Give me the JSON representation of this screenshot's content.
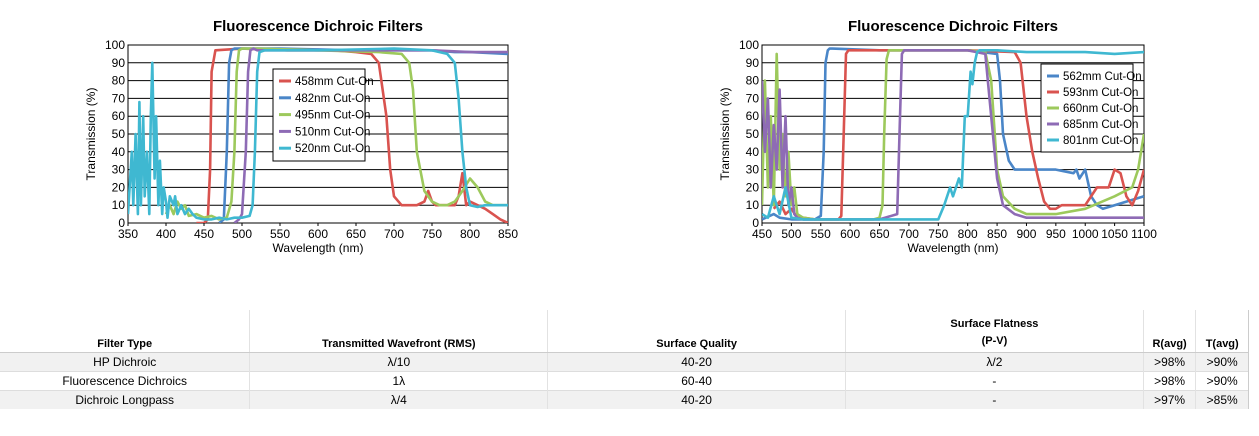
{
  "chart_data": [
    {
      "type": "line",
      "title": "Fluorescence Dichroic Filters",
      "xlabel": "Wavelength (nm)",
      "ylabel": "Transmission (%)",
      "xlim": [
        350,
        850
      ],
      "ylim": [
        0,
        100
      ],
      "xticks": [
        350,
        400,
        450,
        500,
        550,
        600,
        650,
        700,
        750,
        800,
        850
      ],
      "yticks": [
        0,
        10,
        20,
        30,
        40,
        50,
        60,
        70,
        80,
        90,
        100
      ],
      "grid": true,
      "legend_position": "center-right",
      "series": [
        {
          "name": "458mm Cut-On",
          "color": "#d9534f",
          "x": [
            440,
            450,
            455,
            458,
            460,
            465,
            500,
            560,
            620,
            650,
            670,
            680,
            690,
            695,
            700,
            710,
            720,
            730,
            740,
            745,
            750,
            755,
            760,
            770,
            780,
            785,
            790,
            795,
            800,
            810,
            820,
            830,
            840,
            850
          ],
          "y": [
            0,
            0,
            2,
            30,
            85,
            97,
            98,
            97,
            97,
            96,
            95,
            90,
            60,
            30,
            15,
            10,
            10,
            10,
            12,
            18,
            12,
            10,
            10,
            10,
            10,
            15,
            28,
            10,
            12,
            10,
            8,
            5,
            2,
            0
          ]
        },
        {
          "name": "482nm Cut-On",
          "color": "#4a86c8",
          "x": [
            470,
            476,
            480,
            483,
            486,
            490,
            550,
            650,
            700,
            750,
            780,
            800,
            850
          ],
          "y": [
            0,
            2,
            40,
            90,
            97,
            98,
            98,
            97,
            97,
            97,
            96,
            96,
            95
          ]
        },
        {
          "name": "495nm Cut-On",
          "color": "#9dc95c",
          "x": [
            400,
            405,
            410,
            415,
            420,
            425,
            430,
            440,
            450,
            460,
            470,
            480,
            486,
            490,
            493,
            496,
            500,
            520,
            600,
            680,
            710,
            720,
            725,
            730,
            740,
            750,
            760,
            770,
            780,
            790,
            800,
            810,
            820,
            830,
            840,
            850
          ],
          "y": [
            5,
            10,
            5,
            12,
            8,
            10,
            4,
            5,
            3,
            4,
            2,
            3,
            12,
            40,
            85,
            97,
            98,
            98,
            97,
            96,
            95,
            90,
            75,
            40,
            18,
            12,
            10,
            10,
            12,
            18,
            25,
            20,
            12,
            10,
            10,
            10
          ]
        },
        {
          "name": "510nm Cut-On",
          "color": "#8e6bb5",
          "x": [
            490,
            496,
            500,
            505,
            508,
            511,
            515,
            520,
            600,
            700,
            750,
            800,
            850
          ],
          "y": [
            0,
            2,
            5,
            40,
            85,
            97,
            98,
            97,
            97,
            97,
            97,
            96,
            96
          ]
        },
        {
          "name": "520nm Cut-On",
          "color": "#3fb8d1",
          "x": [
            350,
            355,
            357,
            360,
            363,
            365,
            367,
            370,
            372,
            375,
            378,
            380,
            382,
            385,
            387,
            390,
            392,
            395,
            397,
            400,
            402,
            405,
            410,
            412,
            415,
            420,
            425,
            430,
            435,
            440,
            450,
            460,
            470,
            480,
            490,
            500,
            510,
            514,
            517,
            520,
            523,
            530,
            600,
            700,
            750,
            760,
            770,
            780,
            785,
            790,
            795,
            800,
            810,
            820,
            850
          ],
          "y": [
            5,
            40,
            10,
            50,
            5,
            68,
            10,
            60,
            15,
            40,
            5,
            60,
            90,
            25,
            60,
            10,
            35,
            5,
            20,
            12,
            3,
            15,
            10,
            15,
            5,
            10,
            5,
            8,
            5,
            3,
            2,
            2,
            3,
            2,
            3,
            3,
            4,
            10,
            40,
            85,
            96,
            97,
            97,
            98,
            97,
            96,
            95,
            90,
            70,
            40,
            20,
            10,
            9,
            10,
            10
          ]
        }
      ]
    },
    {
      "type": "line",
      "title": "Fluorescence Dichroic Filters",
      "xlabel": "Wavelength (nm)",
      "ylabel": "Transmission (%)",
      "xlim": [
        450,
        1100
      ],
      "ylim": [
        0,
        100
      ],
      "xticks": [
        450,
        500,
        550,
        600,
        650,
        700,
        750,
        800,
        850,
        900,
        950,
        1000,
        1050,
        1100
      ],
      "yticks": [
        0,
        10,
        20,
        30,
        40,
        50,
        60,
        70,
        80,
        90,
        100
      ],
      "grid": true,
      "legend_position": "top-right",
      "series": [
        {
          "name": "562mm Cut-On",
          "color": "#4a86c8",
          "x": [
            450,
            470,
            480,
            500,
            520,
            540,
            550,
            555,
            558,
            562,
            565,
            570,
            650,
            700,
            800,
            850,
            855,
            860,
            870,
            880,
            900,
            950,
            980,
            985,
            990,
            1000,
            1010,
            1020,
            1030,
            1050,
            1070,
            1100
          ],
          "y": [
            2,
            5,
            3,
            2,
            2,
            2,
            4,
            40,
            90,
            97,
            98,
            98,
            97,
            97,
            97,
            95,
            80,
            50,
            35,
            30,
            30,
            30,
            28,
            30,
            25,
            30,
            15,
            10,
            8,
            10,
            12,
            15
          ]
        },
        {
          "name": "593nm Cut-On",
          "color": "#d9534f",
          "x": [
            470,
            480,
            490,
            500,
            510,
            520,
            540,
            560,
            580,
            585,
            589,
            593,
            597,
            600,
            700,
            800,
            880,
            890,
            900,
            910,
            920,
            930,
            940,
            950,
            960,
            980,
            1000,
            1020,
            1040,
            1050,
            1060,
            1070,
            1080,
            1090,
            1100
          ],
          "y": [
            8,
            12,
            5,
            8,
            3,
            3,
            2,
            2,
            2,
            4,
            50,
            95,
            97,
            97,
            97,
            97,
            96,
            90,
            60,
            40,
            25,
            12,
            8,
            8,
            10,
            10,
            10,
            20,
            20,
            30,
            28,
            15,
            10,
            18,
            30
          ]
        },
        {
          "name": "660nm Cut-On",
          "color": "#9dc95c",
          "x": [
            450,
            455,
            460,
            465,
            470,
            475,
            480,
            485,
            490,
            495,
            500,
            505,
            510,
            520,
            540,
            560,
            600,
            640,
            650,
            655,
            658,
            662,
            666,
            670,
            700,
            800,
            830,
            840,
            850,
            860,
            880,
            900,
            950,
            1000,
            1050,
            1080,
            1090,
            1100
          ],
          "y": [
            10,
            80,
            20,
            60,
            10,
            95,
            30,
            50,
            15,
            40,
            10,
            20,
            5,
            3,
            2,
            2,
            2,
            2,
            3,
            10,
            50,
            92,
            97,
            97,
            97,
            97,
            96,
            80,
            30,
            15,
            8,
            5,
            5,
            8,
            15,
            20,
            30,
            50
          ]
        },
        {
          "name": "685nm Cut-On",
          "color": "#8e6bb5",
          "x": [
            450,
            455,
            460,
            465,
            470,
            475,
            480,
            485,
            490,
            495,
            500,
            505,
            510,
            520,
            550,
            600,
            650,
            680,
            684,
            688,
            692,
            700,
            800,
            830,
            840,
            850,
            860,
            880,
            900,
            950,
            1000,
            1050,
            1100
          ],
          "y": [
            80,
            40,
            70,
            20,
            55,
            30,
            75,
            20,
            60,
            10,
            20,
            5,
            3,
            2,
            2,
            2,
            2,
            5,
            50,
            95,
            97,
            97,
            97,
            95,
            60,
            25,
            10,
            5,
            3,
            3,
            3,
            3,
            3
          ]
        },
        {
          "name": "801nm Cut-On",
          "color": "#3fb8d1",
          "x": [
            450,
            460,
            470,
            480,
            490,
            500,
            520,
            550,
            600,
            650,
            700,
            750,
            760,
            770,
            775,
            785,
            790,
            795,
            800,
            805,
            808,
            812,
            816,
            820,
            850,
            900,
            950,
            1000,
            1050,
            1100
          ],
          "y": [
            5,
            3,
            15,
            5,
            20,
            3,
            2,
            2,
            2,
            2,
            2,
            2,
            10,
            20,
            15,
            25,
            20,
            60,
            60,
            85,
            78,
            90,
            96,
            97,
            97,
            96,
            96,
            96,
            95,
            96
          ]
        }
      ]
    }
  ],
  "table": {
    "headers": [
      "Filter Type",
      "Transmitted Wavefront (RMS)",
      "Surface Quality",
      "Surface Flatness\n(P-V)",
      "R(avg)",
      "T(avg)"
    ],
    "rows": [
      [
        "HP Dichroic",
        "λ/10",
        "40-20",
        "λ/2",
        ">98%",
        ">90%"
      ],
      [
        "Fluorescence Dichroics",
        "1λ",
        "60-40",
        "-",
        ">98%",
        ">90%"
      ],
      [
        "Dichroic Longpass",
        "λ/4",
        "40-20",
        "-",
        ">97%",
        ">85%"
      ]
    ]
  }
}
